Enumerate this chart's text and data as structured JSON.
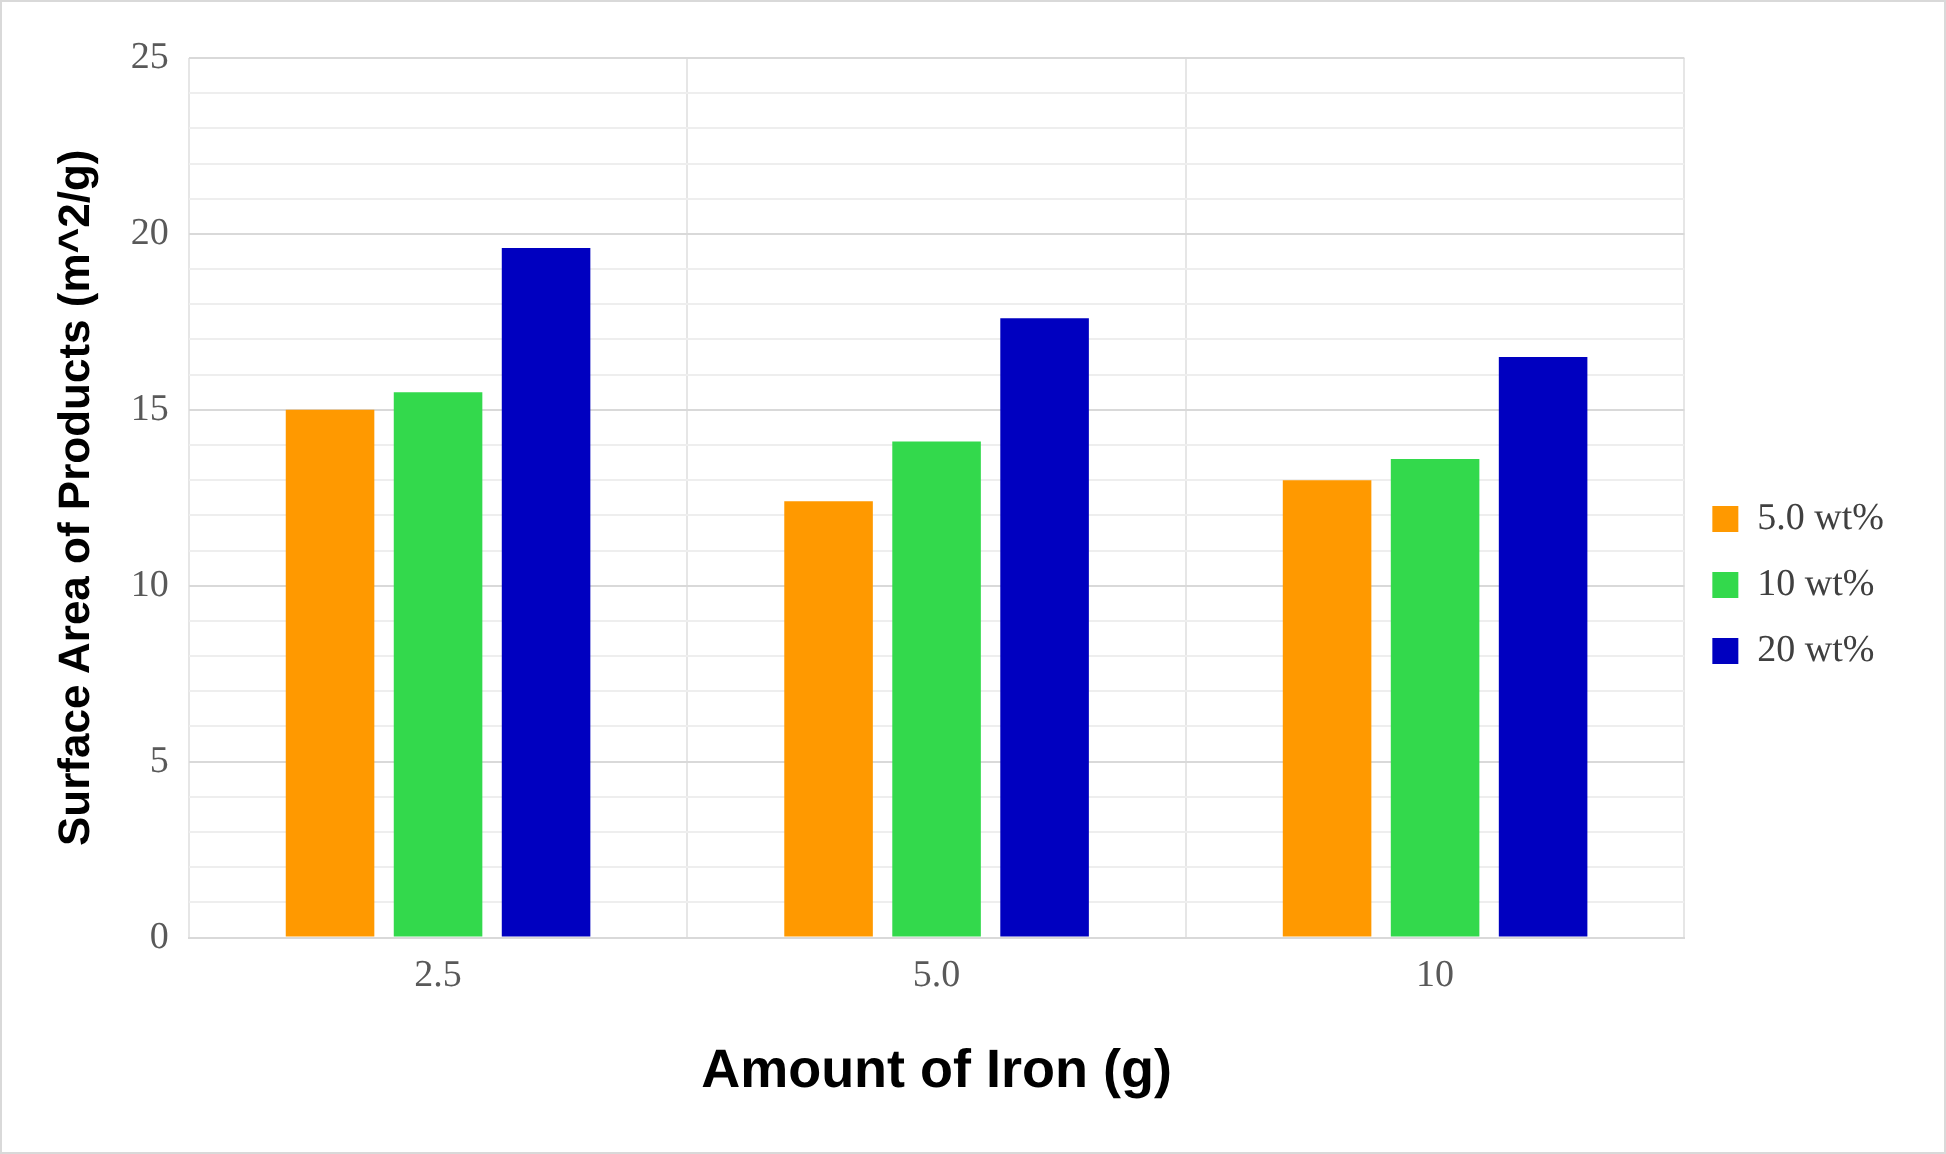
{
  "chart_data": {
    "type": "bar",
    "xlabel": "Amount of Iron (g)",
    "ylabel": "Surface Area of Products (m^2/g)",
    "categories": [
      "2.5",
      "5.0",
      "10"
    ],
    "series": [
      {
        "name": "5.0 wt%",
        "color": "#ff9900",
        "values": [
          15.0,
          12.4,
          13.0
        ]
      },
      {
        "name": "10 wt%",
        "color": "#33d94c",
        "values": [
          15.5,
          14.1,
          13.6
        ]
      },
      {
        "name": "20 wt%",
        "color": "#0000c0",
        "values": [
          19.6,
          17.6,
          16.5
        ]
      }
    ],
    "ylim": [
      0,
      25
    ],
    "yticks": [
      0,
      {
        "value": 1,
        "label": null
      },
      {
        "value": 2,
        "label": null
      },
      {
        "value": 3,
        "label": null
      },
      {
        "value": 4,
        "label": null
      },
      5,
      {
        "value": 6,
        "label": null
      },
      {
        "value": 7,
        "label": null
      },
      {
        "value": 8,
        "label": null
      },
      {
        "value": 9,
        "label": null
      },
      10,
      {
        "value": 11,
        "label": null
      },
      {
        "value": 12,
        "label": null
      },
      {
        "value": 13,
        "label": null
      },
      {
        "value": 14,
        "label": null
      },
      15,
      {
        "value": 16,
        "label": null
      },
      {
        "value": 17,
        "label": null
      },
      {
        "value": 18,
        "label": null
      },
      {
        "value": 19,
        "label": null
      },
      20,
      {
        "value": 21,
        "label": null
      },
      {
        "value": 22,
        "label": null
      },
      {
        "value": 23,
        "label": null
      },
      {
        "value": 24,
        "label": null
      },
      25
    ],
    "grid": true,
    "legend": "right"
  }
}
